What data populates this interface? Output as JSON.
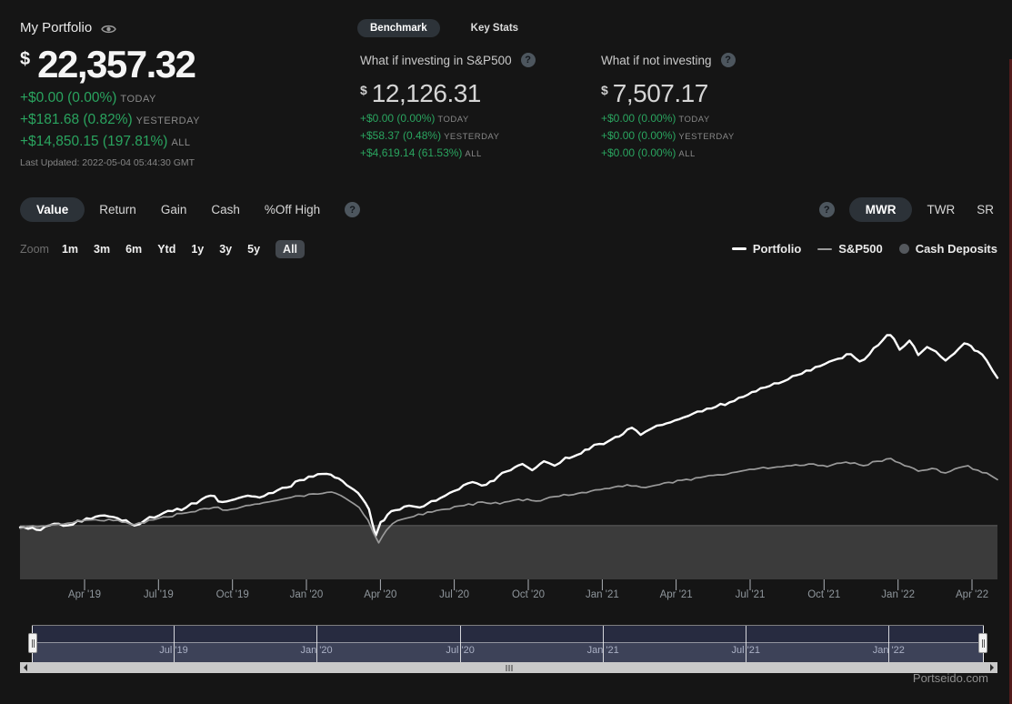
{
  "header": {
    "title": "My Portfolio",
    "currency_symbol": "$",
    "value": "22,357.32",
    "changes": [
      {
        "amount": "+$0.00 (0.00%)",
        "period": "TODAY"
      },
      {
        "amount": "+$181.68 (0.82%)",
        "period": "YESTERDAY"
      },
      {
        "amount": "+$14,850.15 (197.81%)",
        "period": "ALL"
      }
    ],
    "last_updated": "Last Updated: 2022-05-04 05:44:30 GMT"
  },
  "benchmark_panel": {
    "tabs": [
      {
        "label": "Benchmark",
        "active": true
      },
      {
        "label": "Key Stats",
        "active": false
      }
    ],
    "cards": [
      {
        "title": "What if investing in S&P500",
        "currency_symbol": "$",
        "value": "12,126.31",
        "changes": [
          {
            "amount": "+$0.00 (0.00%)",
            "period": "TODAY"
          },
          {
            "amount": "+$58.37 (0.48%)",
            "period": "YESTERDAY"
          },
          {
            "amount": "+$4,619.14 (61.53%)",
            "period": "ALL"
          }
        ]
      },
      {
        "title": "What if not investing",
        "currency_symbol": "$",
        "value": "7,507.17",
        "changes": [
          {
            "amount": "+$0.00 (0.00%)",
            "period": "TODAY"
          },
          {
            "amount": "+$0.00 (0.00%)",
            "period": "YESTERDAY"
          },
          {
            "amount": "+$0.00 (0.00%)",
            "period": "ALL"
          }
        ]
      }
    ]
  },
  "toolbar": {
    "left_tabs": [
      {
        "label": "Value",
        "active": true
      },
      {
        "label": "Return",
        "active": false
      },
      {
        "label": "Gain",
        "active": false
      },
      {
        "label": "Cash",
        "active": false
      },
      {
        "label": "%Off High",
        "active": false
      }
    ],
    "right_tabs": [
      {
        "label": "MWR",
        "active": true
      },
      {
        "label": "TWR",
        "active": false
      },
      {
        "label": "SR",
        "active": false
      }
    ],
    "help_icon": "?"
  },
  "zoom_bar": {
    "label": "Zoom",
    "options": [
      {
        "label": "1m",
        "active": false
      },
      {
        "label": "3m",
        "active": false
      },
      {
        "label": "6m",
        "active": false
      },
      {
        "label": "Ytd",
        "active": false
      },
      {
        "label": "1y",
        "active": false
      },
      {
        "label": "3y",
        "active": false
      },
      {
        "label": "5y",
        "active": false
      },
      {
        "label": "All",
        "active": true
      }
    ]
  },
  "legend": [
    {
      "label": "Portfolio",
      "marker": "line",
      "color": "#ffffff"
    },
    {
      "label": "S&P500",
      "marker": "line",
      "color": "#9a9a9a"
    },
    {
      "label": "Cash Deposits",
      "marker": "circle",
      "color": "#54585d"
    }
  ],
  "chart_data": {
    "type": "line",
    "title": "",
    "xlabel": "",
    "ylabel": "",
    "x_range": [
      "Jan 2019",
      "May 2022"
    ],
    "ylim": [
      2100,
      32900
    ],
    "grid": false,
    "legend_position": "top-right",
    "cash_deposits_value": 7507.17,
    "area_color": "#3b3b3b",
    "x_ticks": [
      {
        "label": "Apr '19",
        "t": 0.066
      },
      {
        "label": "Jul '19",
        "t": 0.1417
      },
      {
        "label": "Oct '19",
        "t": 0.2174
      },
      {
        "label": "Jan '20",
        "t": 0.293
      },
      {
        "label": "Apr '20",
        "t": 0.3687
      },
      {
        "label": "Jul '20",
        "t": 0.4443
      },
      {
        "label": "Oct '20",
        "t": 0.52
      },
      {
        "label": "Jan '21",
        "t": 0.5957
      },
      {
        "label": "Apr '21",
        "t": 0.6713
      },
      {
        "label": "Jul '21",
        "t": 0.747
      },
      {
        "label": "Oct '21",
        "t": 0.8226
      },
      {
        "label": "Jan '22",
        "t": 0.8983
      },
      {
        "label": "Apr '22",
        "t": 0.974
      }
    ],
    "series": [
      {
        "name": "Portfolio",
        "color": "#ffffff",
        "width": 2.4,
        "jitter": 2.2,
        "points": [
          [
            0,
            7325
          ],
          [
            0.021,
            7050
          ],
          [
            0.035,
            7690
          ],
          [
            0.054,
            7600
          ],
          [
            0.068,
            8240
          ],
          [
            0.082,
            8510
          ],
          [
            0.1,
            8240
          ],
          [
            0.117,
            7510
          ],
          [
            0.128,
            8050
          ],
          [
            0.142,
            8510
          ],
          [
            0.156,
            8965
          ],
          [
            0.17,
            9330
          ],
          [
            0.186,
            10150
          ],
          [
            0.195,
            10515
          ],
          [
            0.207,
            9875
          ],
          [
            0.22,
            10150
          ],
          [
            0.233,
            10515
          ],
          [
            0.245,
            10330
          ],
          [
            0.259,
            10790
          ],
          [
            0.273,
            11330
          ],
          [
            0.286,
            12060
          ],
          [
            0.3,
            12425
          ],
          [
            0.314,
            12700
          ],
          [
            0.326,
            12245
          ],
          [
            0.338,
            11330
          ],
          [
            0.35,
            10240
          ],
          [
            0.357,
            9150
          ],
          [
            0.364,
            6505
          ],
          [
            0.369,
            7870
          ],
          [
            0.376,
            8600
          ],
          [
            0.384,
            9055
          ],
          [
            0.398,
            9510
          ],
          [
            0.409,
            9330
          ],
          [
            0.421,
            9965
          ],
          [
            0.435,
            10510
          ],
          [
            0.449,
            11150
          ],
          [
            0.463,
            11880
          ],
          [
            0.477,
            11610
          ],
          [
            0.489,
            12425
          ],
          [
            0.502,
            13065
          ],
          [
            0.514,
            13700
          ],
          [
            0.524,
            13065
          ],
          [
            0.536,
            13975
          ],
          [
            0.547,
            13520
          ],
          [
            0.558,
            14340
          ],
          [
            0.57,
            14615
          ],
          [
            0.582,
            15160
          ],
          [
            0.593,
            15710
          ],
          [
            0.605,
            16160
          ],
          [
            0.617,
            16710
          ],
          [
            0.626,
            17345
          ],
          [
            0.635,
            16620
          ],
          [
            0.646,
            17255
          ],
          [
            0.657,
            17620
          ],
          [
            0.67,
            18075
          ],
          [
            0.684,
            18530
          ],
          [
            0.698,
            18985
          ],
          [
            0.712,
            19440
          ],
          [
            0.726,
            19895
          ],
          [
            0.74,
            20445
          ],
          [
            0.753,
            20990
          ],
          [
            0.767,
            21535
          ],
          [
            0.781,
            21990
          ],
          [
            0.795,
            22630
          ],
          [
            0.809,
            23085
          ],
          [
            0.823,
            23720
          ],
          [
            0.837,
            24270
          ],
          [
            0.85,
            24725
          ],
          [
            0.859,
            23995
          ],
          [
            0.869,
            24725
          ],
          [
            0.878,
            25635
          ],
          [
            0.887,
            26640
          ],
          [
            0.894,
            26275
          ],
          [
            0.9,
            25180
          ],
          [
            0.91,
            26090
          ],
          [
            0.919,
            24635
          ],
          [
            0.928,
            25455
          ],
          [
            0.937,
            25000
          ],
          [
            0.947,
            24090
          ],
          [
            0.956,
            24815
          ],
          [
            0.966,
            25820
          ],
          [
            0.973,
            25545
          ],
          [
            0.98,
            25000
          ],
          [
            0.989,
            24090
          ],
          [
            0.995,
            23085
          ],
          [
            1,
            22357
          ]
        ]
      },
      {
        "name": "S&P500",
        "color": "#9a9a9a",
        "width": 1.7,
        "jitter": 1.5,
        "points": [
          [
            0,
            7235
          ],
          [
            0.035,
            7600
          ],
          [
            0.068,
            8050
          ],
          [
            0.1,
            8050
          ],
          [
            0.117,
            7600
          ],
          [
            0.142,
            8240
          ],
          [
            0.17,
            8780
          ],
          [
            0.198,
            9330
          ],
          [
            0.212,
            9055
          ],
          [
            0.231,
            9510
          ],
          [
            0.254,
            9875
          ],
          [
            0.277,
            10330
          ],
          [
            0.3,
            10695
          ],
          [
            0.319,
            10875
          ],
          [
            0.333,
            10240
          ],
          [
            0.347,
            9330
          ],
          [
            0.356,
            8050
          ],
          [
            0.367,
            5775
          ],
          [
            0.375,
            7050
          ],
          [
            0.381,
            7690
          ],
          [
            0.391,
            8145
          ],
          [
            0.403,
            8420
          ],
          [
            0.417,
            8875
          ],
          [
            0.435,
            9150
          ],
          [
            0.454,
            9510
          ],
          [
            0.473,
            9875
          ],
          [
            0.491,
            9690
          ],
          [
            0.51,
            10150
          ],
          [
            0.528,
            9965
          ],
          [
            0.547,
            10420
          ],
          [
            0.566,
            10605
          ],
          [
            0.584,
            10970
          ],
          [
            0.603,
            11240
          ],
          [
            0.621,
            11605
          ],
          [
            0.64,
            11330
          ],
          [
            0.659,
            11790
          ],
          [
            0.677,
            12060
          ],
          [
            0.696,
            12335
          ],
          [
            0.714,
            12610
          ],
          [
            0.733,
            12880
          ],
          [
            0.751,
            13155
          ],
          [
            0.77,
            13335
          ],
          [
            0.789,
            13520
          ],
          [
            0.807,
            13700
          ],
          [
            0.826,
            13430
          ],
          [
            0.845,
            13885
          ],
          [
            0.863,
            13520
          ],
          [
            0.877,
            13975
          ],
          [
            0.891,
            14250
          ],
          [
            0.905,
            13520
          ],
          [
            0.919,
            12975
          ],
          [
            0.933,
            13250
          ],
          [
            0.947,
            12790
          ],
          [
            0.961,
            13335
          ],
          [
            0.97,
            13520
          ],
          [
            0.98,
            13065
          ],
          [
            0.989,
            12790
          ],
          [
            0.995,
            12425
          ],
          [
            1,
            12126
          ]
        ]
      }
    ]
  },
  "navigator": {
    "ticks": [
      {
        "label": "Jul '19",
        "t": 0.149
      },
      {
        "label": "Jan '20",
        "t": 0.299
      },
      {
        "label": "Jul '20",
        "t": 0.45
      },
      {
        "label": "Jan '21",
        "t": 0.6
      },
      {
        "label": "Jul '21",
        "t": 0.75
      },
      {
        "label": "Jan '22",
        "t": 0.9
      }
    ]
  },
  "footer": {
    "watermark": "Portseido.com"
  },
  "colors": {
    "background": "#151515",
    "positive_green": "#2aa45f",
    "muted_gray": "#8a8a8a",
    "portfolio_line": "#ffffff",
    "sp500_line": "#9a9a9a",
    "cash_area": "#3b3b3b",
    "navigator_top": "#272b40",
    "navigator_bottom": "#3d4258",
    "scrollbar": "#c9c9c9"
  }
}
